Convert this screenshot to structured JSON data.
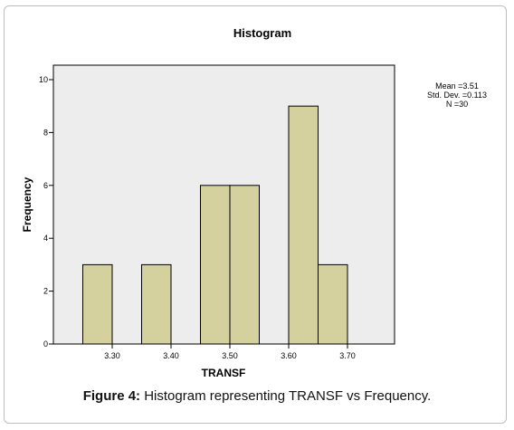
{
  "figure": {
    "caption_prefix": "Figure 4:",
    "caption_text": " Histogram representing TRANSF vs Frequency."
  },
  "stats": {
    "mean": "Mean =3.51",
    "std_dev": "Std. Dev. =0.113",
    "n": "N =30"
  },
  "chart_data": {
    "type": "bar",
    "title": "Histogram",
    "xlabel": "TRANSF",
    "ylabel": "Frequency",
    "bin_width": 0.05,
    "x_ticks": [
      "3.30",
      "3.40",
      "3.50",
      "3.60",
      "3.70"
    ],
    "y_ticks": [
      "0",
      "2",
      "4",
      "6",
      "8",
      "10"
    ],
    "ylim": [
      0,
      10
    ],
    "xlim": [
      3.2,
      3.78
    ],
    "bins": [
      {
        "start": 3.25,
        "end": 3.3,
        "value": 3
      },
      {
        "start": 3.35,
        "end": 3.4,
        "value": 3
      },
      {
        "start": 3.45,
        "end": 3.5,
        "value": 6
      },
      {
        "start": 3.5,
        "end": 3.55,
        "value": 6
      },
      {
        "start": 3.6,
        "end": 3.65,
        "value": 9
      },
      {
        "start": 3.65,
        "end": 3.7,
        "value": 3
      }
    ],
    "colors": {
      "bar_fill": "#d4d19f",
      "bar_stroke": "#000000",
      "plot_background": "#ededed"
    }
  }
}
